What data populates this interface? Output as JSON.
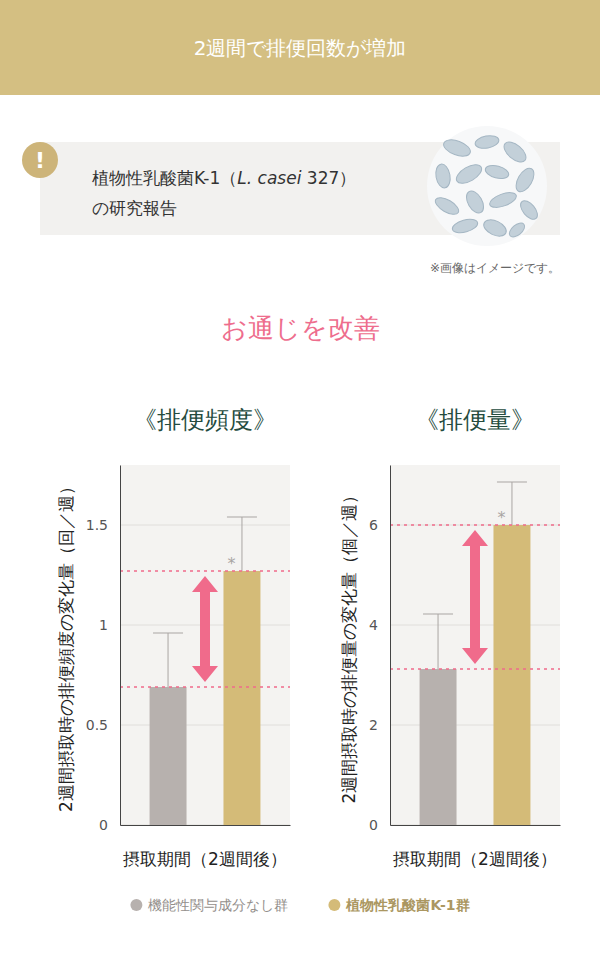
{
  "page": {
    "header": "2週間で排便回数が増加",
    "notice": {
      "icon": "!",
      "lines": [
        [
          "植物性乳酸菌K-1（",
          "L. casei",
          " 327）"
        ],
        [
          "の研究報告"
        ]
      ]
    },
    "image_note": "※画像はイメージです。",
    "heading": "お通じを改善"
  },
  "chart_data": [
    {
      "type": "bar",
      "title": "《排便頻度》",
      "ylabel": "2週間摂取時の排便頻度の変化量（回／週）",
      "categories": [
        "摂取期間（2週間後）"
      ],
      "series": [
        {
          "name": "機能性関与成分なし群",
          "color": "#b7b1ae",
          "values": [
            0.69
          ],
          "errors": [
            0.27
          ]
        },
        {
          "name": "植物性乳酸菌K-1群",
          "color": "#d4bb78",
          "values": [
            1.27
          ],
          "errors": [
            0.27
          ],
          "annotation": "*"
        }
      ],
      "ylim": [
        0,
        1.8
      ],
      "yticks": [
        0,
        0.5,
        1,
        1.5
      ],
      "grid": true,
      "legend": "bottom"
    },
    {
      "type": "bar",
      "title": "《排便量》",
      "ylabel": "2週間摂取時の排便量の変化量（個／週）",
      "categories": [
        "摂取期間（2週間後）"
      ],
      "series": [
        {
          "color": "#b7b1ae",
          "values": [
            3.12
          ],
          "errors": [
            1.1
          ]
        },
        {
          "color": "#d4bb78",
          "values": [
            6
          ],
          "errors": [
            0.86
          ],
          "annotation": "*"
        }
      ],
      "ylim": [
        0,
        7.2
      ],
      "yticks": [
        0,
        2,
        4,
        6
      ],
      "grid": true
    }
  ]
}
